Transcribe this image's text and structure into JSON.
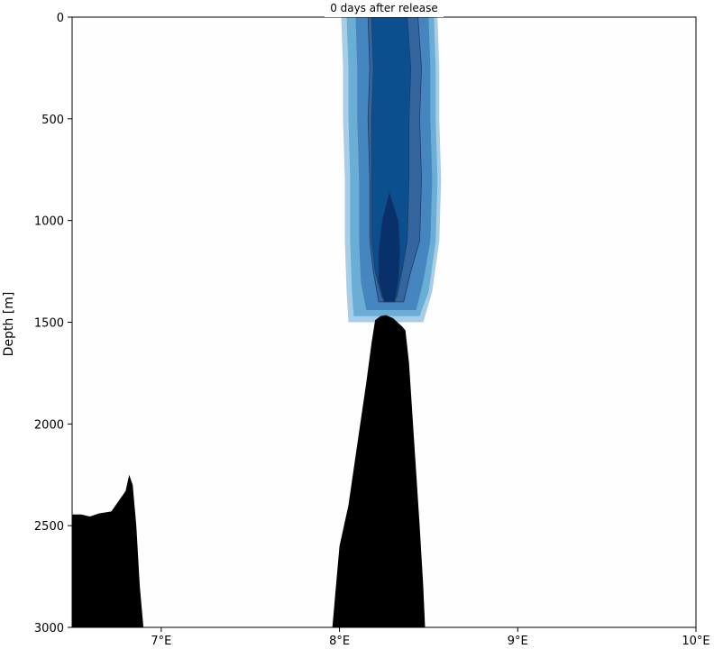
{
  "chart_data": {
    "type": "area",
    "title": "0 days after release",
    "xlabel": "",
    "ylabel": "Depth [m]",
    "xlim": [
      6.5,
      10.0
    ],
    "ylim": [
      3000,
      0
    ],
    "y_inverted": true,
    "grid": false,
    "x_ticks": [
      7,
      8,
      9,
      10
    ],
    "x_tick_labels": [
      "7°E",
      "8°E",
      "9°E",
      "10°E"
    ],
    "y_ticks": [
      0,
      500,
      1000,
      1500,
      2000,
      2500,
      3000
    ],
    "y_tick_labels": [
      "0",
      "500",
      "1000",
      "1500",
      "2000",
      "2500",
      "3000"
    ],
    "bathymetry": {
      "color": "#000000",
      "segments": [
        {
          "name": "western-slope",
          "points": [
            [
              6.5,
              2445
            ],
            [
              6.55,
              2445
            ],
            [
              6.6,
              2455
            ],
            [
              6.65,
              2440
            ],
            [
              6.72,
              2430
            ],
            [
              6.8,
              2330
            ],
            [
              6.82,
              2250
            ],
            [
              6.84,
              2300
            ],
            [
              6.86,
              2500
            ],
            [
              6.88,
              2800
            ],
            [
              6.9,
              3000
            ]
          ]
        },
        {
          "name": "seamount",
          "points": [
            [
              7.96,
              3000
            ],
            [
              7.98,
              2800
            ],
            [
              8.0,
              2600
            ],
            [
              8.05,
              2400
            ],
            [
              8.1,
              2100
            ],
            [
              8.15,
              1800
            ],
            [
              8.18,
              1600
            ],
            [
              8.2,
              1490
            ],
            [
              8.23,
              1470
            ],
            [
              8.26,
              1465
            ],
            [
              8.3,
              1480
            ],
            [
              8.35,
              1520
            ],
            [
              8.37,
              1540
            ],
            [
              8.39,
              1700
            ],
            [
              8.42,
              2100
            ],
            [
              8.45,
              2500
            ],
            [
              8.47,
              2800
            ],
            [
              8.48,
              3000
            ]
          ]
        }
      ]
    },
    "tracer_plume": {
      "colors": [
        "#d6e6f4",
        "#a9cde6",
        "#6aaed6",
        "#4686c0",
        "#35659e",
        "#0b4f8e",
        "#08306b"
      ],
      "layers": [
        {
          "level": 1,
          "left_x": [
            8.01,
            8.02,
            8.02,
            8.03,
            8.03,
            8.04,
            8.05
          ],
          "right_x": [
            8.55,
            8.56,
            8.56,
            8.57,
            8.56,
            8.52,
            8.47
          ],
          "depths": [
            0,
            250,
            500,
            800,
            1100,
            1350,
            1500
          ]
        },
        {
          "level": 2,
          "left_x": [
            8.04,
            8.05,
            8.05,
            8.06,
            8.06,
            8.07,
            8.08
          ],
          "right_x": [
            8.53,
            8.54,
            8.54,
            8.55,
            8.54,
            8.5,
            8.45
          ],
          "depths": [
            0,
            250,
            500,
            800,
            1100,
            1350,
            1470
          ]
        },
        {
          "level": 3,
          "left_x": [
            8.09,
            8.1,
            8.1,
            8.11,
            8.11,
            8.12,
            8.15
          ],
          "right_x": [
            8.5,
            8.51,
            8.51,
            8.52,
            8.51,
            8.47,
            8.43
          ],
          "depths": [
            0,
            250,
            500,
            800,
            1100,
            1300,
            1440
          ]
        },
        {
          "level": 4,
          "left_x": [
            8.16,
            8.17,
            8.16,
            8.17,
            8.17,
            8.19,
            8.22
          ],
          "right_x": [
            8.44,
            8.46,
            8.45,
            8.46,
            8.45,
            8.4,
            8.36
          ],
          "depths": [
            0,
            250,
            500,
            800,
            1100,
            1250,
            1400
          ]
        },
        {
          "level": 5,
          "left_x": [
            8.18,
            8.19,
            8.18,
            8.18,
            8.18,
            8.2,
            8.24
          ],
          "right_x": [
            8.38,
            8.4,
            8.39,
            8.39,
            8.38,
            8.35,
            8.32
          ],
          "depths": [
            0,
            250,
            500,
            800,
            1100,
            1250,
            1380
          ]
        },
        {
          "level": 6,
          "left_x": [
            8.28,
            8.24,
            8.22,
            8.22,
            8.25
          ],
          "right_x": [
            8.28,
            8.33,
            8.34,
            8.33,
            8.31
          ],
          "depths": [
            860,
            1000,
            1150,
            1300,
            1400
          ]
        }
      ]
    }
  }
}
